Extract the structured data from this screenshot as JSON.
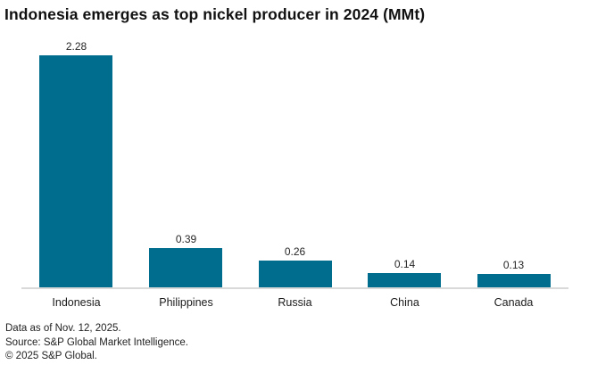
{
  "title": "Indonesia emerges as top nickel producer in 2024 (MMt)",
  "chart_data": {
    "type": "bar",
    "title": "Indonesia emerges as top nickel producer in 2024 (MMt)",
    "categories": [
      "Indonesia",
      "Philippines",
      "Russia",
      "China",
      "Canada"
    ],
    "values": [
      2.28,
      0.39,
      0.26,
      0.14,
      0.13
    ],
    "value_labels": [
      "2.28",
      "0.39",
      "0.26",
      "0.14",
      "0.13"
    ],
    "unit": "MMt",
    "xlabel": "",
    "ylabel": "",
    "ylim": [
      0,
      2.28
    ],
    "grid": false,
    "legend": "none",
    "data_labels": "above bars",
    "bar_color": "#006d8e",
    "axis_line_color": "#d9d9d9"
  },
  "footer": {
    "line1": "Data as of Nov. 12, 2025.",
    "line2": "Source: S&P Global Market Intelligence.",
    "line3": "© 2025 S&P Global."
  }
}
